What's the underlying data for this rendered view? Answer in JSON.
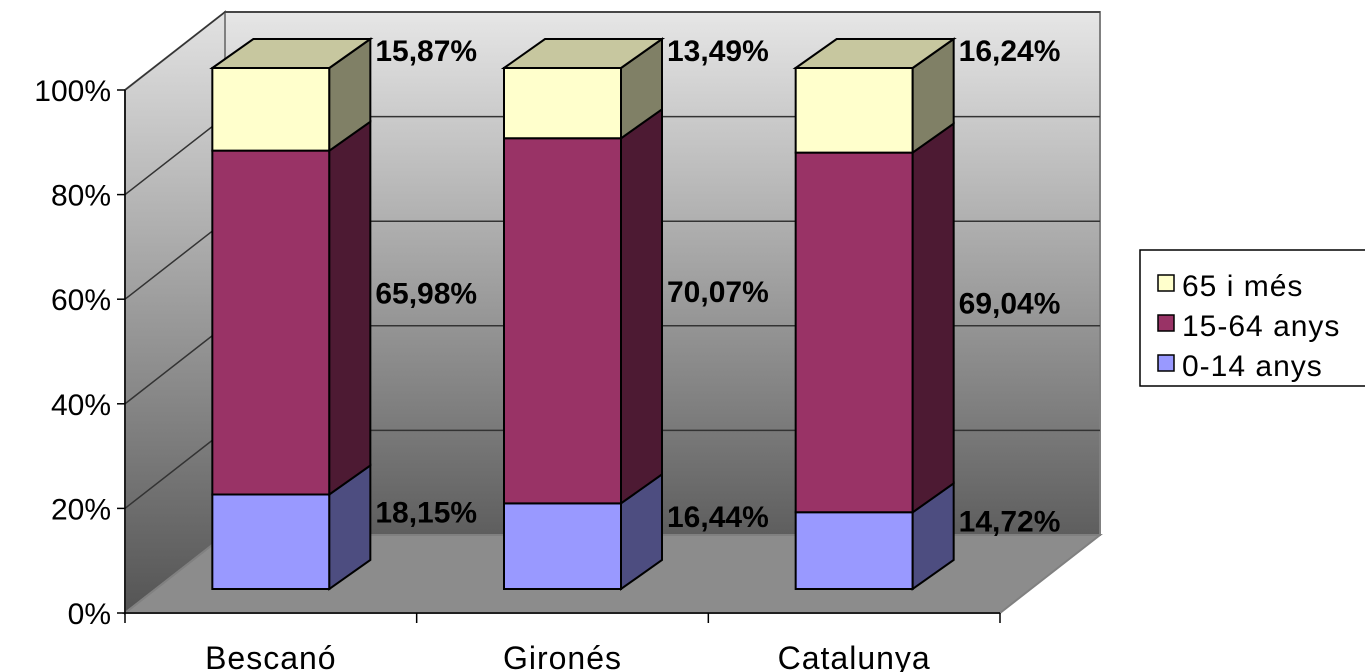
{
  "chart_data": {
    "type": "bar",
    "stacked": true,
    "percent": true,
    "three_d": true,
    "categories": [
      "Bescanó",
      "Gironés",
      "Catalunya"
    ],
    "series": [
      {
        "name": "0-14 anys",
        "values": [
          18.15,
          16.44,
          14.72
        ],
        "labels": [
          "18,15%",
          "16,44%",
          "14,72%"
        ],
        "color": "#9999FF"
      },
      {
        "name": "15-64 anys",
        "values": [
          65.98,
          70.07,
          69.04
        ],
        "labels": [
          "65,98%",
          "70,07%",
          "69,04%"
        ],
        "color": "#993366"
      },
      {
        "name": "65 i més",
        "values": [
          15.87,
          13.49,
          16.24
        ],
        "labels": [
          "15,87%",
          "13,49%",
          "16,24%"
        ],
        "color": "#FFFFCC"
      }
    ],
    "yticks": [
      "0%",
      "20%",
      "40%",
      "60%",
      "80%",
      "100%"
    ],
    "ylim": [
      0,
      100
    ],
    "grid": true,
    "legend_position": "right"
  }
}
